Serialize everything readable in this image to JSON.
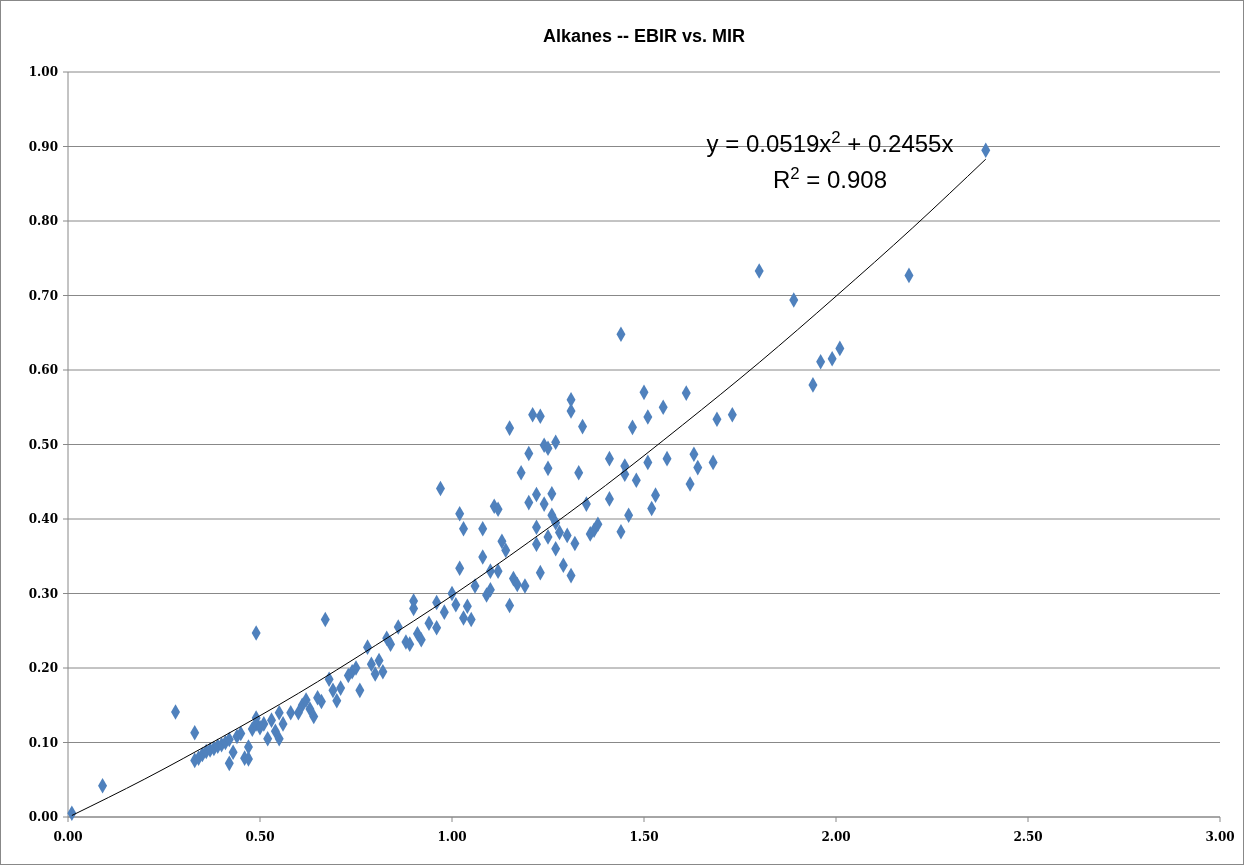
{
  "chart_data": {
    "type": "scatter",
    "title": "Alkanes -- EBIR vs. MIR",
    "xlim": [
      0,
      3
    ],
    "xticks": [
      {
        "value": 0,
        "label": "0.00"
      },
      {
        "value": 0.5,
        "label": "0.50"
      },
      {
        "value": 1,
        "label": "1.00"
      },
      {
        "value": 1.5,
        "label": "1.50"
      },
      {
        "value": 2,
        "label": "2.00"
      },
      {
        "value": 2.5,
        "label": "2.50"
      },
      {
        "value": 3,
        "label": "3.00"
      }
    ],
    "ylim": [
      0,
      1
    ],
    "yticks": [
      {
        "value": 0,
        "label": "0.00"
      },
      {
        "value": 0.1,
        "label": "0.10"
      },
      {
        "value": 0.2,
        "label": "0.20"
      },
      {
        "value": 0.3,
        "label": "0.30"
      },
      {
        "value": 0.4,
        "label": "0.40"
      },
      {
        "value": 0.5,
        "label": "0.50"
      },
      {
        "value": 0.6,
        "label": "0.60"
      },
      {
        "value": 0.7,
        "label": "0.70"
      },
      {
        "value": 0.8,
        "label": "0.80"
      },
      {
        "value": 0.9,
        "label": "0.90"
      },
      {
        "value": 1,
        "label": "1.00"
      }
    ],
    "grid": "y",
    "marker": "diamond",
    "annotations": [
      "y = 0.0519x$^{2}$ + 0.2455x",
      "R$^{2}$ = 0.908"
    ],
    "series": [
      {
        "color": "#4f81bd",
        "x": [
          0.01,
          0.09,
          0.28,
          0.33,
          0.33,
          0.34,
          0.35,
          0.36,
          0.37,
          0.38,
          0.39,
          0.4,
          0.41,
          0.42,
          0.42,
          0.43,
          0.44,
          0.45,
          0.46,
          0.47,
          0.47,
          0.48,
          0.49,
          0.49,
          0.5,
          0.51,
          0.52,
          0.53,
          0.54,
          0.55,
          0.55,
          0.56,
          0.58,
          0.6,
          0.61,
          0.62,
          0.63,
          0.64,
          0.65,
          0.66,
          0.49,
          0.67,
          0.68,
          0.69,
          0.7,
          0.71,
          0.73,
          0.74,
          0.75,
          0.76,
          0.78,
          0.79,
          0.8,
          0.81,
          0.82,
          0.83,
          0.84,
          0.86,
          0.88,
          0.89,
          0.9,
          0.9,
          0.91,
          0.92,
          0.94,
          0.96,
          0.96,
          0.97,
          0.98,
          1.0,
          1.01,
          1.02,
          1.02,
          1.03,
          1.03,
          1.04,
          1.05,
          1.06,
          1.08,
          1.08,
          1.09,
          1.1,
          1.1,
          1.11,
          1.12,
          1.12,
          1.13,
          1.14,
          1.15,
          1.15,
          1.16,
          1.17,
          1.18,
          1.19,
          1.2,
          1.2,
          1.21,
          1.22,
          1.22,
          1.22,
          1.23,
          1.23,
          1.24,
          1.24,
          1.25,
          1.25,
          1.25,
          1.26,
          1.26,
          1.27,
          1.27,
          1.27,
          1.28,
          1.29,
          1.3,
          1.31,
          1.31,
          1.31,
          1.32,
          1.33,
          1.34,
          1.35,
          1.36,
          1.37,
          1.38,
          1.41,
          1.41,
          1.44,
          1.44,
          1.45,
          1.45,
          1.46,
          1.47,
          1.48,
          1.5,
          1.51,
          1.51,
          1.52,
          1.53,
          1.55,
          1.56,
          1.61,
          1.62,
          1.63,
          1.64,
          1.68,
          1.69,
          1.73,
          1.8,
          1.89,
          1.94,
          1.96,
          1.99,
          2.01,
          2.19,
          2.39
        ],
        "values": [
          0.005,
          0.042,
          0.141,
          0.113,
          0.076,
          0.079,
          0.084,
          0.088,
          0.09,
          0.092,
          0.095,
          0.097,
          0.1,
          0.104,
          0.072,
          0.087,
          0.108,
          0.112,
          0.079,
          0.094,
          0.078,
          0.118,
          0.125,
          0.133,
          0.12,
          0.125,
          0.105,
          0.13,
          0.115,
          0.105,
          0.14,
          0.125,
          0.14,
          0.14,
          0.15,
          0.157,
          0.145,
          0.135,
          0.16,
          0.155,
          0.247,
          0.265,
          0.185,
          0.17,
          0.156,
          0.173,
          0.19,
          0.195,
          0.2,
          0.17,
          0.228,
          0.205,
          0.192,
          0.21,
          0.195,
          0.24,
          0.232,
          0.255,
          0.235,
          0.232,
          0.28,
          0.29,
          0.246,
          0.238,
          0.26,
          0.288,
          0.254,
          0.441,
          0.275,
          0.3,
          0.285,
          0.407,
          0.334,
          0.387,
          0.267,
          0.283,
          0.265,
          0.31,
          0.349,
          0.387,
          0.298,
          0.33,
          0.305,
          0.417,
          0.413,
          0.33,
          0.37,
          0.358,
          0.284,
          0.522,
          0.32,
          0.312,
          0.462,
          0.31,
          0.422,
          0.488,
          0.54,
          0.433,
          0.389,
          0.366,
          0.538,
          0.328,
          0.499,
          0.42,
          0.495,
          0.468,
          0.376,
          0.434,
          0.405,
          0.503,
          0.395,
          0.36,
          0.382,
          0.338,
          0.378,
          0.545,
          0.56,
          0.324,
          0.367,
          0.462,
          0.524,
          0.42,
          0.38,
          0.385,
          0.393,
          0.481,
          0.427,
          0.383,
          0.648,
          0.46,
          0.471,
          0.405,
          0.523,
          0.452,
          0.57,
          0.537,
          0.476,
          0.414,
          0.432,
          0.55,
          0.481,
          0.569,
          0.447,
          0.487,
          0.469,
          0.476,
          0.534,
          0.54,
          0.733,
          0.694,
          0.58,
          0.611,
          0.615,
          0.629,
          0.727,
          0.895
        ]
      },
      {
        "type": "line",
        "marker": "none",
        "color": "#000000",
        "x": [
          0.01,
          0.2,
          0.4,
          0.6,
          0.8,
          1.0,
          1.2,
          1.4,
          1.6,
          1.8,
          2.0,
          2.2,
          2.39
        ],
        "values": [
          0.002,
          0.051,
          0.107,
          0.166,
          0.23,
          0.297,
          0.369,
          0.445,
          0.526,
          0.61,
          0.699,
          0.791,
          0.883
        ]
      }
    ]
  }
}
